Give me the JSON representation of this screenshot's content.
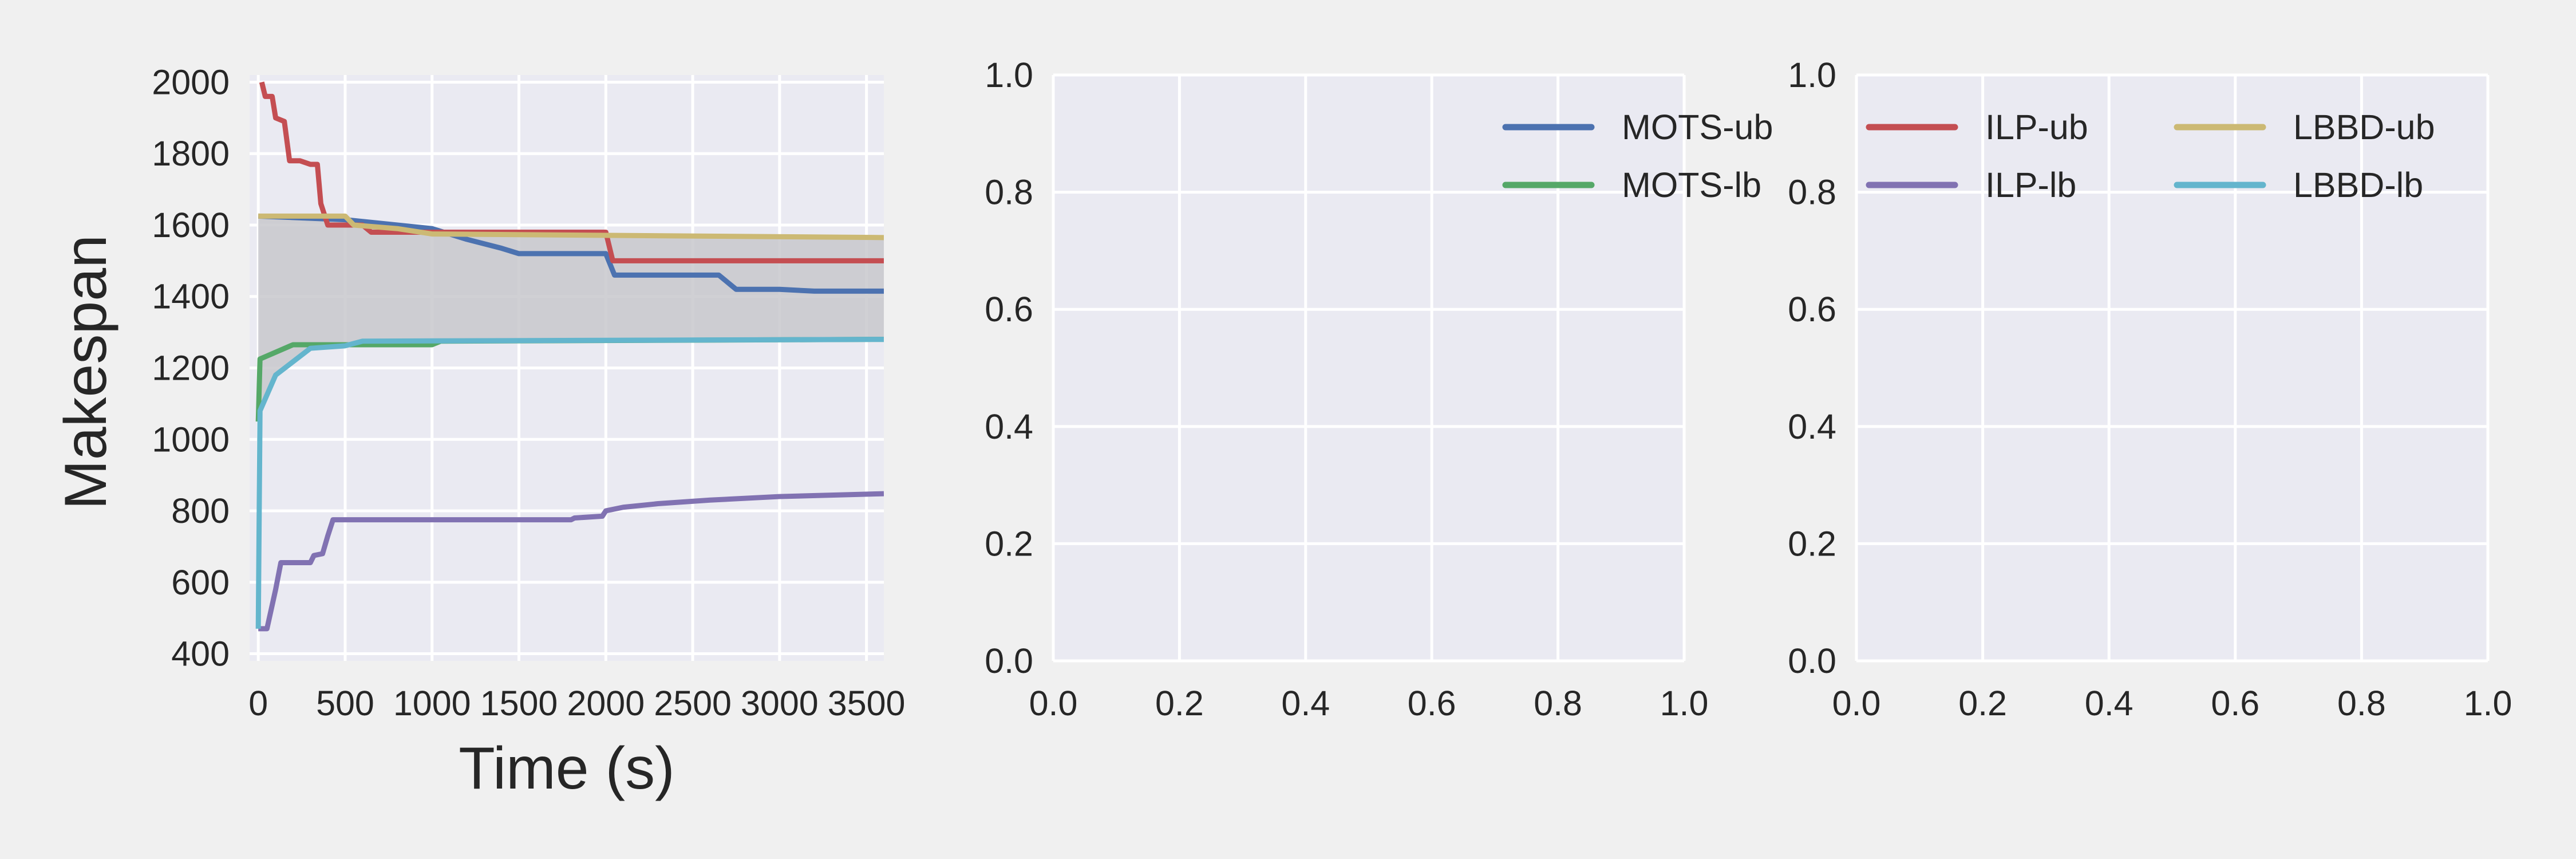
{
  "chart_data": [
    {
      "type": "line",
      "title": "",
      "xlabel": "Time (s)",
      "ylabel": "Makespan",
      "xlim": [
        -50,
        3600
      ],
      "ylim": [
        380,
        2020
      ],
      "xticks": [
        0,
        500,
        1000,
        1500,
        2000,
        2500,
        3000,
        3500
      ],
      "yticks": [
        400,
        600,
        800,
        1000,
        1200,
        1400,
        1600,
        1800,
        2000
      ],
      "grid": true,
      "shaded_band": {
        "from": "LBBD-lb",
        "to": "LBBD-ub",
        "color": "#c8c8cc"
      },
      "series": [
        {
          "name": "MOTS-ub",
          "color": "#4c72b0",
          "points": [
            [
              0,
              1625
            ],
            [
              500,
              1615
            ],
            [
              1000,
              1590
            ],
            [
              1200,
              1560
            ],
            [
              1400,
              1535
            ],
            [
              1500,
              1520
            ],
            [
              2000,
              1520
            ],
            [
              2050,
              1460
            ],
            [
              2650,
              1460
            ],
            [
              2750,
              1420
            ],
            [
              3000,
              1420
            ],
            [
              3200,
              1415
            ],
            [
              3600,
              1415
            ]
          ]
        },
        {
          "name": "MOTS-lb",
          "color": "#55a868",
          "points": [
            [
              0,
              1050
            ],
            [
              10,
              1225
            ],
            [
              200,
              1265
            ],
            [
              1000,
              1265
            ],
            [
              1050,
              1275
            ],
            [
              3600,
              1280
            ]
          ]
        },
        {
          "name": "ILP-ub",
          "color": "#c44e52",
          "points": [
            [
              20,
              2000
            ],
            [
              40,
              1960
            ],
            [
              80,
              1960
            ],
            [
              100,
              1900
            ],
            [
              150,
              1890
            ],
            [
              180,
              1780
            ],
            [
              240,
              1780
            ],
            [
              300,
              1770
            ],
            [
              340,
              1770
            ],
            [
              360,
              1660
            ],
            [
              400,
              1600
            ],
            [
              600,
              1600
            ],
            [
              650,
              1580
            ],
            [
              2000,
              1580
            ],
            [
              2040,
              1500
            ],
            [
              3600,
              1500
            ]
          ]
        },
        {
          "name": "ILP-lb",
          "color": "#8172b2",
          "points": [
            [
              0,
              470
            ],
            [
              50,
              470
            ],
            [
              100,
              580
            ],
            [
              130,
              655
            ],
            [
              300,
              655
            ],
            [
              320,
              675
            ],
            [
              370,
              680
            ],
            [
              400,
              730
            ],
            [
              430,
              775
            ],
            [
              1800,
              775
            ],
            [
              1820,
              780
            ],
            [
              1980,
              785
            ],
            [
              2000,
              800
            ],
            [
              2100,
              810
            ],
            [
              2300,
              820
            ],
            [
              2600,
              830
            ],
            [
              3000,
              840
            ],
            [
              3600,
              848
            ]
          ]
        },
        {
          "name": "LBBD-ub",
          "color": "#ccb974",
          "points": [
            [
              0,
              1625
            ],
            [
              500,
              1625
            ],
            [
              550,
              1600
            ],
            [
              800,
              1590
            ],
            [
              1000,
              1575
            ],
            [
              3600,
              1565
            ]
          ]
        },
        {
          "name": "LBBD-lb",
          "color": "#64b5cd",
          "points": [
            [
              0,
              470
            ],
            [
              10,
              1080
            ],
            [
              100,
              1180
            ],
            [
              300,
              1255
            ],
            [
              500,
              1262
            ],
            [
              600,
              1275
            ],
            [
              3600,
              1280
            ]
          ]
        }
      ]
    },
    {
      "type": "line",
      "title": "",
      "xlabel": "",
      "ylabel": "",
      "xlim": [
        0,
        1
      ],
      "ylim": [
        0,
        1
      ],
      "xticks": [
        "0.0",
        "0.2",
        "0.4",
        "0.6",
        "0.8",
        "1.0"
      ],
      "yticks": [
        "0.0",
        "0.2",
        "0.4",
        "0.6",
        "0.8",
        "1.0"
      ],
      "grid": true,
      "series": []
    },
    {
      "type": "line",
      "title": "",
      "xlabel": "",
      "ylabel": "",
      "xlim": [
        0,
        1
      ],
      "ylim": [
        0,
        1
      ],
      "xticks": [
        "0.0",
        "0.2",
        "0.4",
        "0.6",
        "0.8",
        "1.0"
      ],
      "yticks": [
        "0.0",
        "0.2",
        "0.4",
        "0.6",
        "0.8",
        "1.0"
      ],
      "grid": true,
      "series": []
    }
  ],
  "legend": {
    "placement": "top-right, above second and third panels",
    "entries": [
      {
        "label": "MOTS-ub",
        "color": "#4c72b0"
      },
      {
        "label": "MOTS-lb",
        "color": "#55a868"
      },
      {
        "label": "ILP-ub",
        "color": "#c44e52"
      },
      {
        "label": "ILP-lb",
        "color": "#8172b2"
      },
      {
        "label": "LBBD-ub",
        "color": "#ccb974"
      },
      {
        "label": "LBBD-lb",
        "color": "#64b5cd"
      }
    ]
  },
  "style": {
    "background": "#f0f0f0",
    "axes_bg": "#eaeaf2",
    "grid_color": "#ffffff",
    "text_color": "#262626"
  }
}
